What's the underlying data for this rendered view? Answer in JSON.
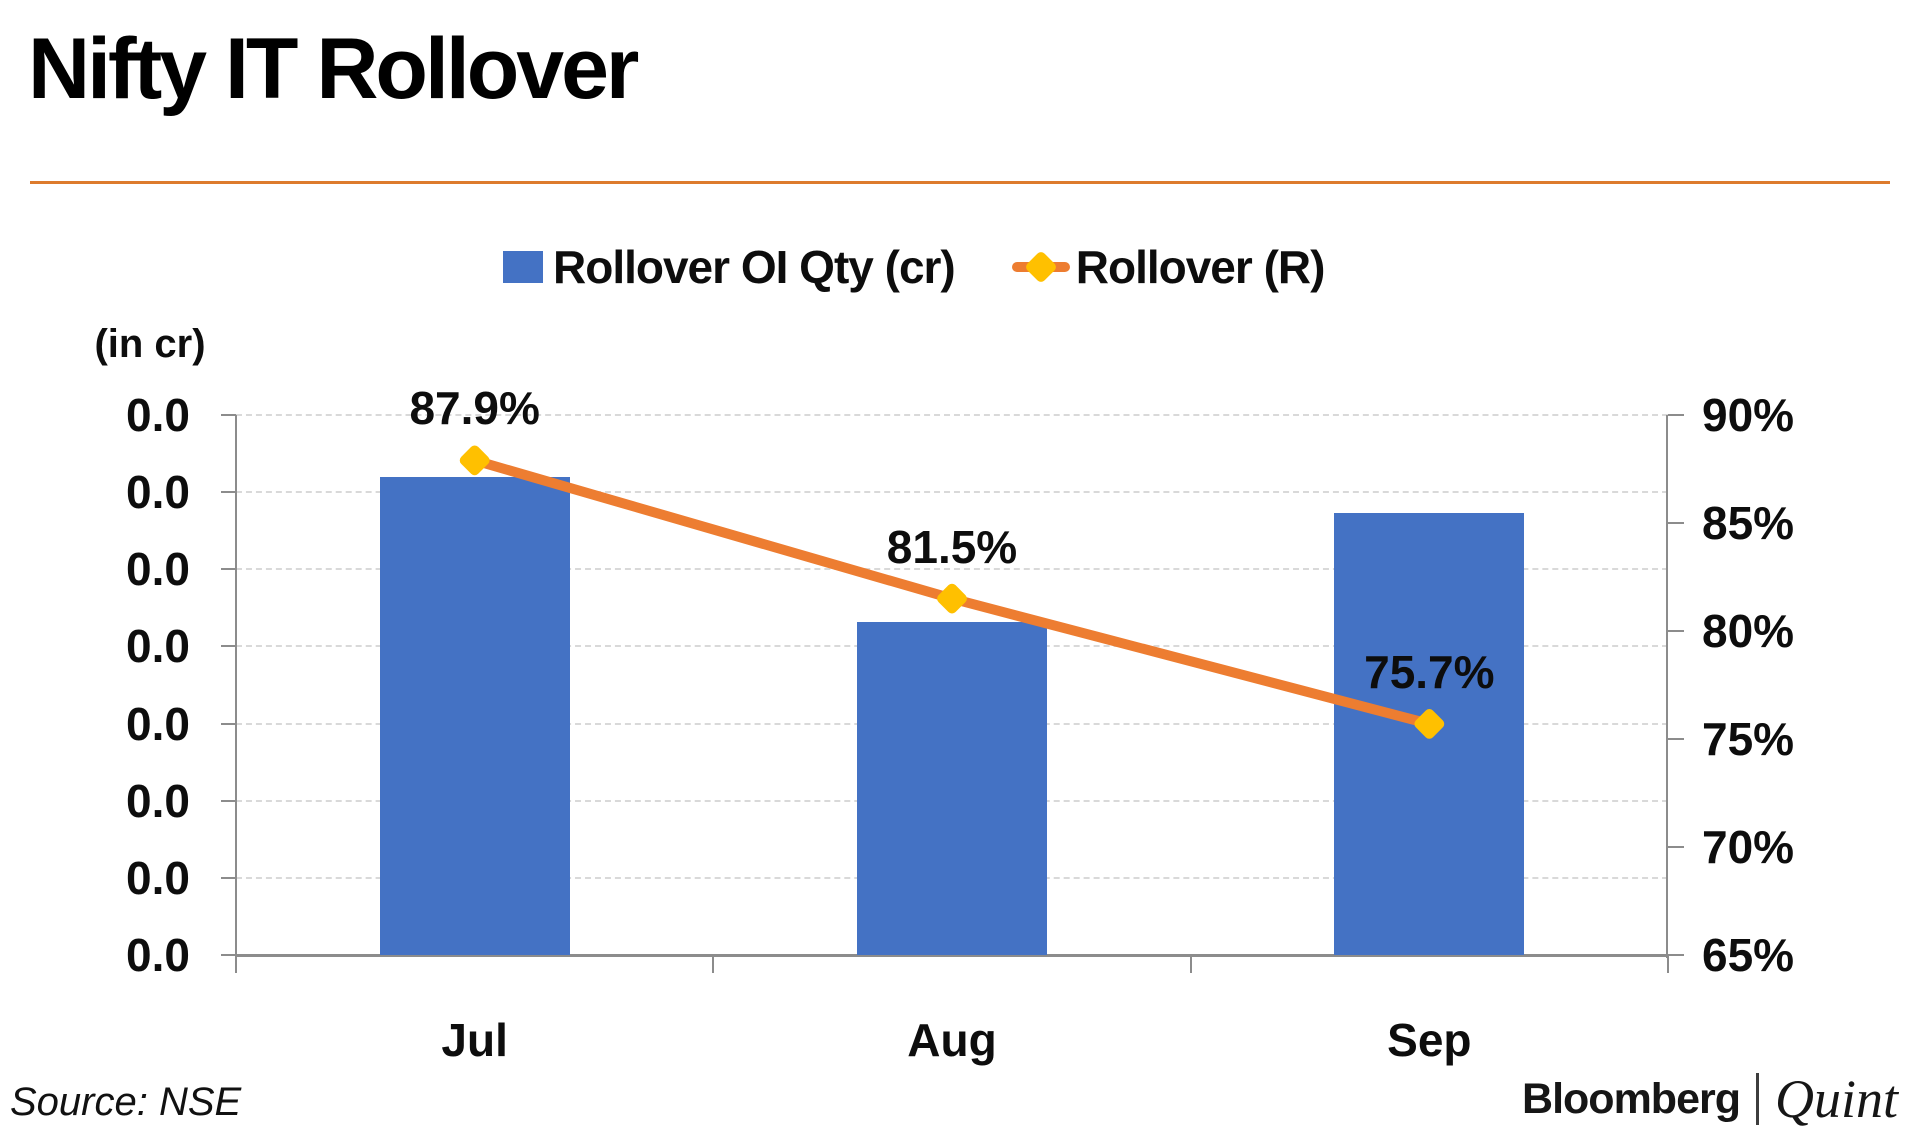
{
  "header": {
    "title": "Nifty IT Rollover"
  },
  "legend": {
    "items": [
      {
        "label": "Rollover OI Qty (cr)",
        "marker": "bar-swatch"
      },
      {
        "label": "Rollover (R)",
        "marker": "line-diamond"
      }
    ]
  },
  "chart_data": {
    "type": "bar+line",
    "categories": [
      "Jul",
      "Aug",
      "Sep"
    ],
    "series": [
      {
        "name": "Rollover OI Qty (cr)",
        "type": "bar",
        "axis": "left",
        "bar_top_fractions": [
          0.885,
          0.617,
          0.819
        ],
        "note": "left axis tick labels all read 0.0, absolute quantities not resolvable from image"
      },
      {
        "name": "Rollover (R)",
        "type": "line",
        "axis": "right",
        "values": [
          87.9,
          81.5,
          75.7
        ],
        "point_labels": [
          "87.9%",
          "81.5%",
          "75.7%"
        ]
      }
    ],
    "left_axis": {
      "title": "(in cr)",
      "tick_labels": [
        "0.0",
        "0.0",
        "0.0",
        "0.0",
        "0.0",
        "0.0",
        "0.0",
        "0.0"
      ]
    },
    "right_axis": {
      "tick_labels": [
        "90%",
        "85%",
        "80%",
        "75%",
        "70%",
        "65%"
      ],
      "max": 90,
      "min": 65,
      "step": 5
    },
    "grid": "horizontal-dashed",
    "legend_position": "top-center"
  },
  "colors": {
    "bar": "#4472c4",
    "line": "#ed7d31",
    "marker": "#ffc000",
    "divider": "#dd7b2d",
    "grid": "#d9d9d9",
    "axis": "#8c8c8c",
    "text": "#0d0d0d"
  },
  "footer": {
    "source": "Source: NSE",
    "brand": {
      "bloomberg": "Bloomberg",
      "quint": "Quint"
    }
  }
}
